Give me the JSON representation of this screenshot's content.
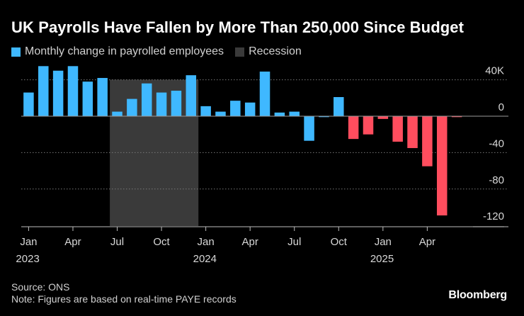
{
  "title": "UK Payrolls Have Fallen by More Than 250,000 Since Budget",
  "legend": {
    "series_label": "Monthly change in payrolled employees",
    "recession_label": "Recession"
  },
  "colors": {
    "positive": "#3fb8ff",
    "negative": "#ff4d5e",
    "recession": "#3a3a3a",
    "background": "#000000"
  },
  "footer": {
    "source": "Source: ONS",
    "note": "Note: Figures are based on real-time PAYE records"
  },
  "brand": "Bloomberg",
  "chart_data": {
    "type": "bar",
    "title": "UK Payrolls Have Fallen by More Than 250,000 Since Budget",
    "series": [
      {
        "name": "Monthly change in payrolled employees",
        "categories": [
          "2023-01",
          "2023-02",
          "2023-03",
          "2023-04",
          "2023-05",
          "2023-06",
          "2023-07",
          "2023-08",
          "2023-09",
          "2023-10",
          "2023-11",
          "2023-12",
          "2024-01",
          "2024-02",
          "2024-03",
          "2024-04",
          "2024-05",
          "2024-06",
          "2024-07",
          "2024-08",
          "2024-09",
          "2024-10",
          "2024-11",
          "2024-12",
          "2025-01",
          "2025-02",
          "2025-03",
          "2025-04",
          "2025-05",
          "2025-06"
        ],
        "values": [
          26,
          55,
          50,
          55,
          38,
          42,
          5,
          19,
          36,
          26,
          28,
          45,
          11,
          5,
          17,
          15,
          49,
          4,
          5,
          -27,
          -1,
          21,
          -25,
          -20,
          -3,
          -28,
          -35,
          -55,
          -109,
          -1
        ]
      }
    ],
    "recession_period": [
      "2023-07",
      "2023-12"
    ],
    "yticks": [
      {
        "value": 40,
        "label": "40K"
      },
      {
        "value": 0,
        "label": "0"
      },
      {
        "value": -40,
        "label": "-40"
      },
      {
        "value": -80,
        "label": "-80"
      },
      {
        "value": -120,
        "label": "-120"
      }
    ],
    "xticks": [
      {
        "month": "2023-01",
        "label": "Jan",
        "year": "2023"
      },
      {
        "month": "2023-04",
        "label": "Apr",
        "year": ""
      },
      {
        "month": "2023-07",
        "label": "Jul",
        "year": ""
      },
      {
        "month": "2023-10",
        "label": "Oct",
        "year": ""
      },
      {
        "month": "2024-01",
        "label": "Jan",
        "year": "2024"
      },
      {
        "month": "2024-04",
        "label": "Apr",
        "year": ""
      },
      {
        "month": "2024-07",
        "label": "Jul",
        "year": ""
      },
      {
        "month": "2024-10",
        "label": "Oct",
        "year": ""
      },
      {
        "month": "2025-01",
        "label": "Jan",
        "year": "2025"
      },
      {
        "month": "2025-04",
        "label": "Apr",
        "year": ""
      }
    ],
    "ylim": [
      -120,
      56
    ],
    "grid": "horizontal-dotted",
    "legend_position": "top-left"
  }
}
